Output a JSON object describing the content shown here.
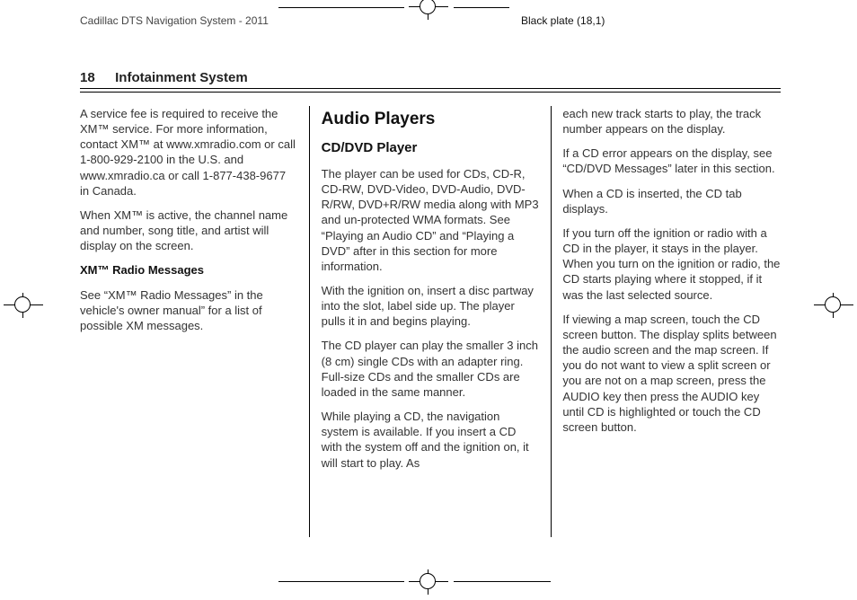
{
  "print_marks": {
    "doc_title": "Cadillac DTS Navigation System - 2011",
    "plate_label": "Black plate (18,1)"
  },
  "running_head": {
    "page_number": "18",
    "section_title": "Infotainment System"
  },
  "col1": {
    "p1": "A service fee is required to receive the XM™ service. For more information, contact XM™ at www.xmradio.com or call 1-800-929-2100 in the U.S. and www.xmradio.ca or call 1-877-438-9677 in Canada.",
    "p2": "When XM™ is active, the channel name and number, song title, and artist will display on the screen.",
    "h3": "XM™ Radio Messages",
    "p3": "See “XM™ Radio Messages” in the vehicle's owner manual” for a list of possible XM messages."
  },
  "col2": {
    "h1": "Audio Players",
    "h2": "CD/DVD Player",
    "p1": "The player can be used for CDs, CD-R, CD-RW, DVD-Video, DVD-Audio, DVD-R/RW, DVD+R/RW media along with MP3 and un-protected WMA formats. See “Playing an Audio CD” and “Playing a DVD” after in this section for more information.",
    "p2": "With the ignition on, insert a disc partway into the slot, label side up. The player pulls it in and begins playing.",
    "p3": "The CD player can play the smaller 3 inch (8 cm) single CDs with an adapter ring. Full-size CDs and the smaller CDs are loaded in the same manner.",
    "p4": "While playing a CD, the navigation system is available. If you insert a CD with the system off and the ignition on, it will start to play. As"
  },
  "col3": {
    "p1": "each new track starts to play, the track number appears on the display.",
    "p2": "If a CD error appears on the display, see “CD/DVD Messages” later in this section.",
    "p3": "When a CD is inserted, the CD tab displays.",
    "p4": "If you turn off the ignition or radio with a CD in the player, it stays in the player. When you turn on the ignition or radio, the CD starts playing where it stopped, if it was the last selected source.",
    "p5": "If viewing a map screen, touch the CD screen button. The display splits between the audio screen and the map screen. If you do not want to view a split screen or you are not on a map screen, press the AUDIO key then press the AUDIO key until CD is highlighted or touch the CD screen button."
  }
}
